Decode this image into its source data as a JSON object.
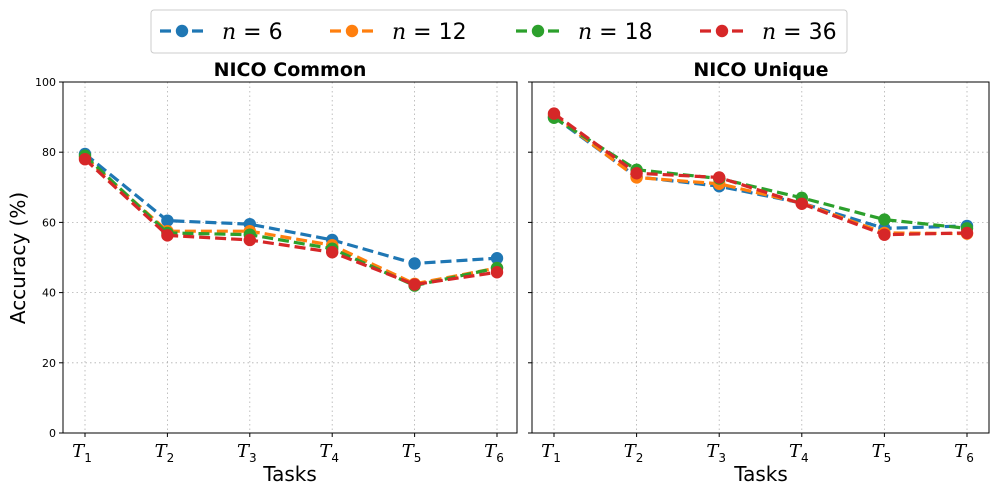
{
  "chart_data": [
    {
      "type": "line",
      "title": "NICO Common",
      "xlabel": "Tasks",
      "ylabel": "Accuracy (%)",
      "ylim": [
        0,
        100
      ],
      "yticks": [
        0,
        20,
        40,
        60,
        80,
        100
      ],
      "categories": [
        "T1",
        "T2",
        "T3",
        "T4",
        "T5",
        "T6"
      ],
      "category_labels": [
        {
          "main": "T",
          "sub": "1"
        },
        {
          "main": "T",
          "sub": "2"
        },
        {
          "main": "T",
          "sub": "3"
        },
        {
          "main": "T",
          "sub": "4"
        },
        {
          "main": "T",
          "sub": "5"
        },
        {
          "main": "T",
          "sub": "6"
        }
      ],
      "grid": true,
      "series": [
        {
          "name": "n = 6",
          "color": "#1f77b4",
          "values": [
            79.5,
            60.5,
            59.5,
            55.0,
            48.3,
            49.8
          ]
        },
        {
          "name": "n = 12",
          "color": "#ff7f0e",
          "values": [
            78.5,
            57.5,
            57.5,
            53.5,
            42.5,
            47.0
          ]
        },
        {
          "name": "n = 18",
          "color": "#2ca02c",
          "values": [
            79.0,
            57.0,
            56.5,
            52.5,
            42.0,
            47.0
          ]
        },
        {
          "name": "n = 36",
          "color": "#d62728",
          "values": [
            78.0,
            56.3,
            55.0,
            51.5,
            42.3,
            45.8
          ]
        }
      ]
    },
    {
      "type": "line",
      "title": "NICO Unique",
      "xlabel": "Tasks",
      "ylabel": "",
      "ylim": [
        0,
        100
      ],
      "yticks": [
        0,
        20,
        40,
        60,
        80,
        100
      ],
      "categories": [
        "T1",
        "T2",
        "T3",
        "T4",
        "T5",
        "T6"
      ],
      "category_labels": [
        {
          "main": "T",
          "sub": "1"
        },
        {
          "main": "T",
          "sub": "2"
        },
        {
          "main": "T",
          "sub": "3"
        },
        {
          "main": "T",
          "sub": "4"
        },
        {
          "main": "T",
          "sub": "5"
        },
        {
          "main": "T",
          "sub": "6"
        }
      ],
      "grid": true,
      "series": [
        {
          "name": "n = 6",
          "color": "#1f77b4",
          "values": [
            90.0,
            73.0,
            70.3,
            65.5,
            58.3,
            59.0
          ]
        },
        {
          "name": "n = 12",
          "color": "#ff7f0e",
          "values": [
            90.5,
            72.8,
            71.0,
            65.5,
            57.0,
            56.8
          ]
        },
        {
          "name": "n = 18",
          "color": "#2ca02c",
          "values": [
            89.8,
            75.0,
            72.5,
            67.0,
            60.8,
            58.3
          ]
        },
        {
          "name": "n = 36",
          "color": "#d62728",
          "values": [
            91.0,
            74.0,
            72.8,
            65.3,
            56.5,
            57.0
          ]
        }
      ]
    }
  ],
  "legend": {
    "placement": "top-center",
    "items": [
      {
        "var": "n",
        "eq": " = ",
        "value": "6",
        "color": "#1f77b4"
      },
      {
        "var": "n",
        "eq": " = ",
        "value": "12",
        "color": "#ff7f0e"
      },
      {
        "var": "n",
        "eq": " = ",
        "value": "18",
        "color": "#2ca02c"
      },
      {
        "var": "n",
        "eq": " = ",
        "value": "36",
        "color": "#d62728"
      }
    ]
  }
}
